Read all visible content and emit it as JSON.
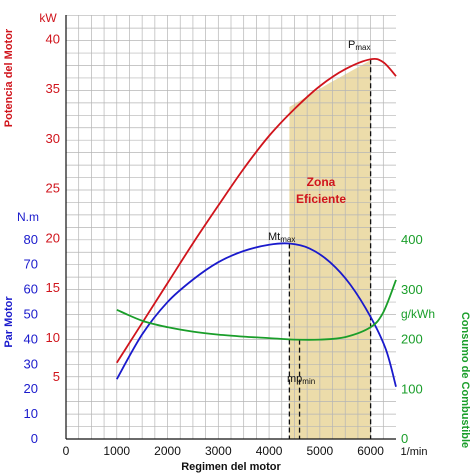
{
  "chart_data": {
    "type": "line",
    "xlabel": "Regimen del motor",
    "x_unit": "1/min",
    "xlim": [
      0,
      6500
    ],
    "x_ticks": [
      "0",
      "1000",
      "2000",
      "3000",
      "4000",
      "5000",
      "6000"
    ],
    "axes": {
      "power": {
        "title": "Potencia del Motor",
        "unit": "kW",
        "ticks": [
          "5",
          "10",
          "15",
          "20",
          "25",
          "30",
          "35",
          "40"
        ],
        "color": "#d0141c"
      },
      "torque": {
        "title": "Par Motor",
        "unit": "N.m",
        "ticks": [
          "0",
          "10",
          "20",
          "30",
          "40",
          "50",
          "60",
          "70",
          "80"
        ],
        "color": "#1a1acc"
      },
      "fuel": {
        "title": "Consumo de Combustible",
        "unit": "g/kWh",
        "ticks": [
          "0",
          "100",
          "200",
          "300",
          "400"
        ],
        "color": "#1a9e2a"
      }
    },
    "series": [
      {
        "axis": "power",
        "color": "#d0141c",
        "x": [
          1000,
          1500,
          2000,
          2500,
          3000,
          3500,
          4000,
          4500,
          5000,
          5500,
          6000,
          6250,
          6500
        ],
        "values": [
          7.5,
          11.5,
          15.5,
          19.5,
          23.3,
          27,
          30.3,
          33,
          35.3,
          37,
          38,
          37.7,
          36.3
        ]
      },
      {
        "axis": "torque",
        "color": "#1a1acc",
        "x": [
          1000,
          1500,
          2000,
          2500,
          3000,
          3500,
          4000,
          4400,
          4800,
          5200,
          5600,
          6000,
          6300,
          6500
        ],
        "values": [
          24,
          42,
          55,
          64,
          71,
          75.5,
          78,
          78.5,
          76.5,
          71,
          62,
          49,
          36,
          21
        ]
      },
      {
        "axis": "fuel",
        "color": "#1a9e2a",
        "x": [
          1000,
          1500,
          2000,
          2500,
          3000,
          3500,
          4000,
          4500,
          5000,
          5500,
          6000,
          6250,
          6500
        ],
        "values": [
          260,
          238,
          225,
          216,
          210,
          206,
          203,
          200,
          200,
          205,
          225,
          255,
          320
        ]
      }
    ],
    "shaded_zone": {
      "label_line1": "Zona",
      "label_line2": "Eficiente",
      "x_start": 4000,
      "x_end": 6000,
      "color": "#ecdcaa"
    },
    "markers": [
      {
        "label": "P",
        "sub": "max",
        "x": 6000,
        "axis": "power",
        "value": 38
      },
      {
        "label": "Mt",
        "sub": "max",
        "x": 4400,
        "axis": "torque",
        "value": 78.5
      },
      {
        "label": "mp",
        "sub": "min",
        "x": 4600,
        "axis": "fuel",
        "value": 200
      }
    ]
  }
}
